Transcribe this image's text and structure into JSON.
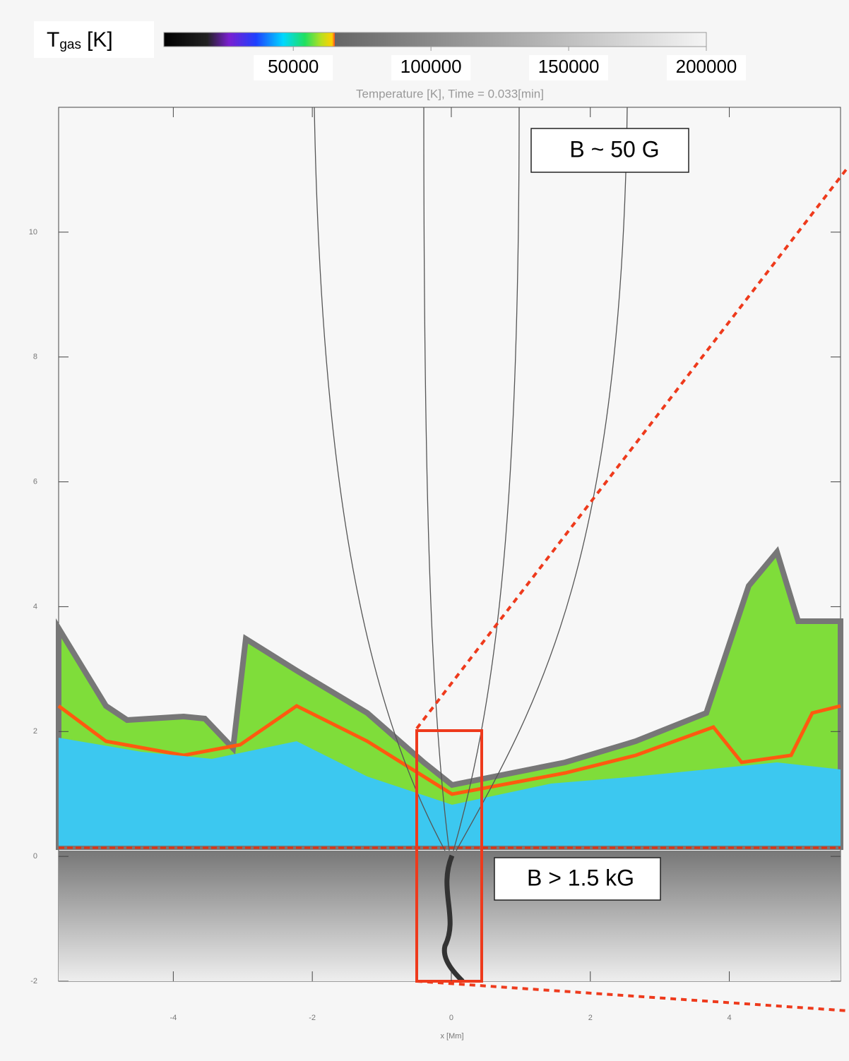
{
  "chart_data": {
    "type": "image",
    "title": "Temperature [K], Time = 0.033[min]",
    "x_label": "x [Mm]",
    "xlim": [
      -5.65,
      5.6
    ],
    "xticks": [
      -4,
      -2,
      0,
      2,
      4
    ],
    "ylim": [
      -2,
      12
    ],
    "yticks": [
      -2,
      0,
      2,
      4,
      6,
      8,
      10
    ],
    "colorbar": {
      "label": "T",
      "label_sub": "gas",
      "label_unit": "[K]",
      "clim": [
        3000,
        200000
      ],
      "ticks": [
        50000,
        100000,
        150000,
        200000
      ]
    },
    "annotations": [
      "B ~ 50 G",
      "B > 1.5 kG"
    ]
  }
}
